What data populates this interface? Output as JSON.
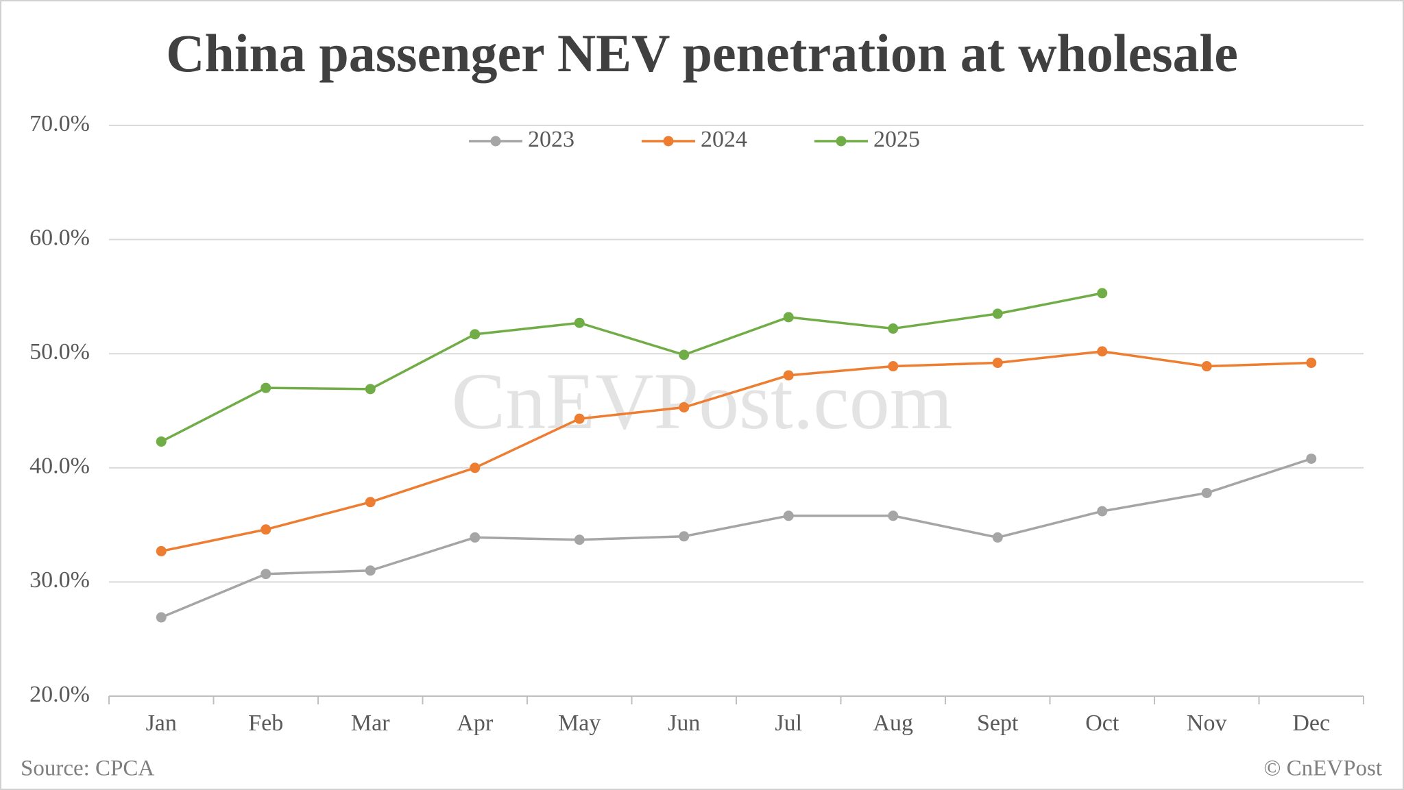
{
  "chart_data": {
    "type": "line",
    "title": "China passenger NEV penetration at wholesale",
    "watermark": "CnEVPost.com",
    "source": "Source: CPCA",
    "credit": "© CnEVPost",
    "categories": [
      "Jan",
      "Feb",
      "Mar",
      "Apr",
      "May",
      "Jun",
      "Jul",
      "Aug",
      "Sept",
      "Oct",
      "Nov",
      "Dec"
    ],
    "series": [
      {
        "name": "2023",
        "color": "#a5a5a5",
        "values": [
          26.9,
          30.7,
          31.0,
          33.9,
          33.7,
          34.0,
          35.8,
          35.8,
          33.9,
          36.2,
          37.8,
          40.8
        ]
      },
      {
        "name": "2024",
        "color": "#ed7d31",
        "values": [
          32.7,
          34.6,
          37.0,
          40.0,
          44.3,
          45.3,
          48.1,
          48.9,
          49.2,
          50.2,
          48.9,
          49.2
        ]
      },
      {
        "name": "2025",
        "color": "#70ad47",
        "values": [
          42.3,
          47.0,
          46.9,
          51.7,
          52.7,
          49.9,
          53.2,
          52.2,
          53.5,
          55.3,
          null,
          null
        ]
      }
    ],
    "ylim": [
      20,
      70
    ],
    "yticks": [
      {
        "value": 20,
        "label": "20.0%"
      },
      {
        "value": 30,
        "label": "30.0%"
      },
      {
        "value": 40,
        "label": "40.0%"
      },
      {
        "value": 50,
        "label": "50.0%"
      },
      {
        "value": 60,
        "label": "60.0%"
      },
      {
        "value": 70,
        "label": "70.0%"
      }
    ],
    "grid": true,
    "legend": "top"
  }
}
